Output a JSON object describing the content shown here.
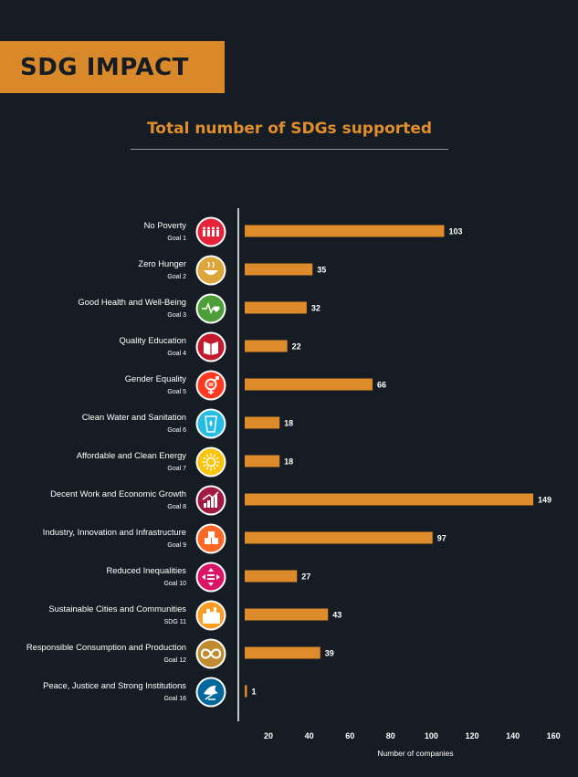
{
  "banner": {
    "title": "SDG IMPACT"
  },
  "colors": {
    "background": "#161c23",
    "accent": "#d9892a",
    "bar": "#dd8b2b",
    "text": "#ffffff"
  },
  "chart_data": {
    "type": "bar",
    "orientation": "horizontal",
    "title": "Total number of SDGs supported",
    "xlabel": "Number of companies",
    "ylabel": "",
    "xlim": [
      0,
      160
    ],
    "xticks": [
      20,
      40,
      60,
      80,
      100,
      120,
      140,
      160
    ],
    "grid": false,
    "categories": [
      {
        "name": "No Poverty",
        "goal": "Goal 1",
        "value": 103,
        "icon": "no-poverty-icon",
        "color": "#e5243b"
      },
      {
        "name": "Zero Hunger",
        "goal": "Goal 2",
        "value": 35,
        "icon": "zero-hunger-icon",
        "color": "#dda63a"
      },
      {
        "name": "Good Health and Well-Being",
        "goal": "Goal 3",
        "value": 32,
        "icon": "good-health-icon",
        "color": "#4c9f38"
      },
      {
        "name": "Quality Education",
        "goal": "Goal 4",
        "value": 22,
        "icon": "quality-education-icon",
        "color": "#c5192d"
      },
      {
        "name": "Gender Equality",
        "goal": "Goal 5",
        "value": 66,
        "icon": "gender-equality-icon",
        "color": "#ff3a21"
      },
      {
        "name": "Clean Water and Sanitation",
        "goal": "Goal 6",
        "value": 18,
        "icon": "clean-water-icon",
        "color": "#26bde2"
      },
      {
        "name": "Affordable and Clean Energy",
        "goal": "Goal 7",
        "value": 18,
        "icon": "clean-energy-icon",
        "color": "#fcc30b"
      },
      {
        "name": "Decent Work and Economic Growth",
        "goal": "Goal 8",
        "value": 149,
        "icon": "decent-work-icon",
        "color": "#a21942"
      },
      {
        "name": "Industry, Innovation and Infrastructure",
        "goal": "Goal 9",
        "value": 97,
        "icon": "industry-innovation-icon",
        "color": "#fd6925"
      },
      {
        "name": "Reduced Inequalities",
        "goal": "Goal 10",
        "value": 27,
        "icon": "reduced-inequalities-icon",
        "color": "#dd1367"
      },
      {
        "name": "Sustainable Cities and Communities",
        "goal": "SDG 11",
        "value": 43,
        "icon": "sustainable-cities-icon",
        "color": "#fd9d24"
      },
      {
        "name": "Responsible Consumption and Production",
        "goal": "Goal 12",
        "value": 39,
        "icon": "responsible-consumption-icon",
        "color": "#bf8b2e"
      },
      {
        "name": "Peace, Justice and Strong Institutions",
        "goal": "Goal 16",
        "value": 1,
        "icon": "peace-justice-icon",
        "color": "#00689d"
      }
    ]
  }
}
